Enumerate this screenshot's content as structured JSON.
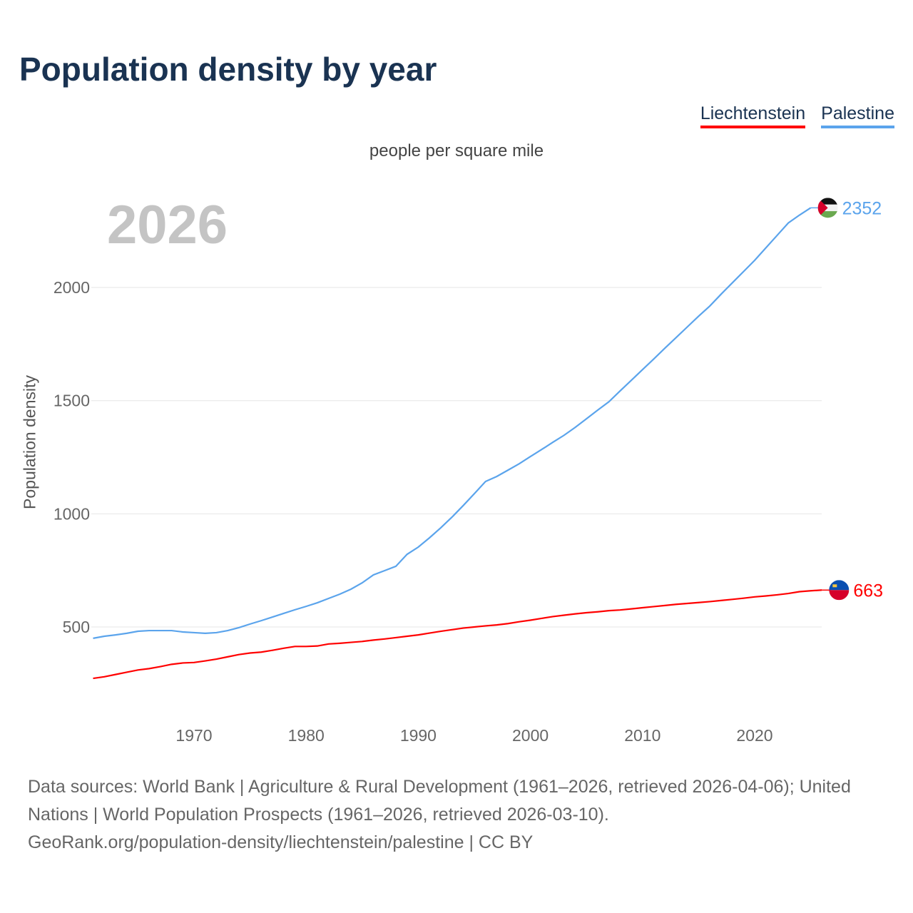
{
  "title": "Population density by year",
  "unit": "people per square mile",
  "current_year": "2026",
  "footer": {
    "sources": "Data sources: World Bank | Agriculture & Rural Development (1961–2026, retrieved 2026-04-06); United Nations | World Population Prospects (1961–2026, retrieved 2026-03-10).",
    "link": "GeoRank.org/population-density/liechtenstein/palestine | CC BY"
  },
  "chart_data": {
    "type": "line",
    "title": "Population density by year",
    "ylabel": "Population density",
    "xlabel": "",
    "xlim": [
      1961,
      2026
    ],
    "ylim": [
      220,
      2450
    ],
    "grid": true,
    "legend": "top-right",
    "x_ticks": [
      1970,
      1980,
      1990,
      2000,
      2010,
      2020
    ],
    "y_ticks": [
      500,
      1000,
      1500,
      2000
    ],
    "series": [
      {
        "name": "Liechtenstein",
        "color": "#ff0000",
        "end_label": "663",
        "x_start": 1961,
        "values": [
          273,
          280,
          290,
          300,
          310,
          316,
          325,
          335,
          341,
          343,
          350,
          358,
          368,
          378,
          385,
          389,
          397,
          406,
          414,
          414,
          416,
          425,
          428,
          432,
          436,
          442,
          447,
          453,
          459,
          465,
          473,
          481,
          488,
          495,
          500,
          505,
          509,
          515,
          523,
          530,
          538,
          546,
          552,
          558,
          563,
          567,
          572,
          575,
          580,
          585,
          590,
          595,
          600,
          604,
          608,
          612,
          617,
          622,
          627,
          633,
          637,
          642,
          648,
          656,
          660,
          663
        ]
      },
      {
        "name": "Palestine",
        "color": "#5ba4ec",
        "end_label": "2352",
        "x_start": 1961,
        "values": [
          450,
          459,
          465,
          472,
          481,
          484,
          484,
          484,
          478,
          475,
          472,
          475,
          484,
          497,
          513,
          528,
          544,
          560,
          576,
          591,
          607,
          626,
          645,
          667,
          695,
          730,
          749,
          768,
          821,
          853,
          894,
          938,
          985,
          1036,
          1089,
          1143,
          1165,
          1193,
          1221,
          1253,
          1284,
          1316,
          1347,
          1382,
          1420,
          1458,
          1495,
          1543,
          1590,
          1637,
          1684,
          1732,
          1779,
          1826,
          1873,
          1918,
          1970,
          2020,
          2070,
          2120,
          2175,
          2230,
          2285,
          2320,
          2352
        ]
      }
    ]
  }
}
